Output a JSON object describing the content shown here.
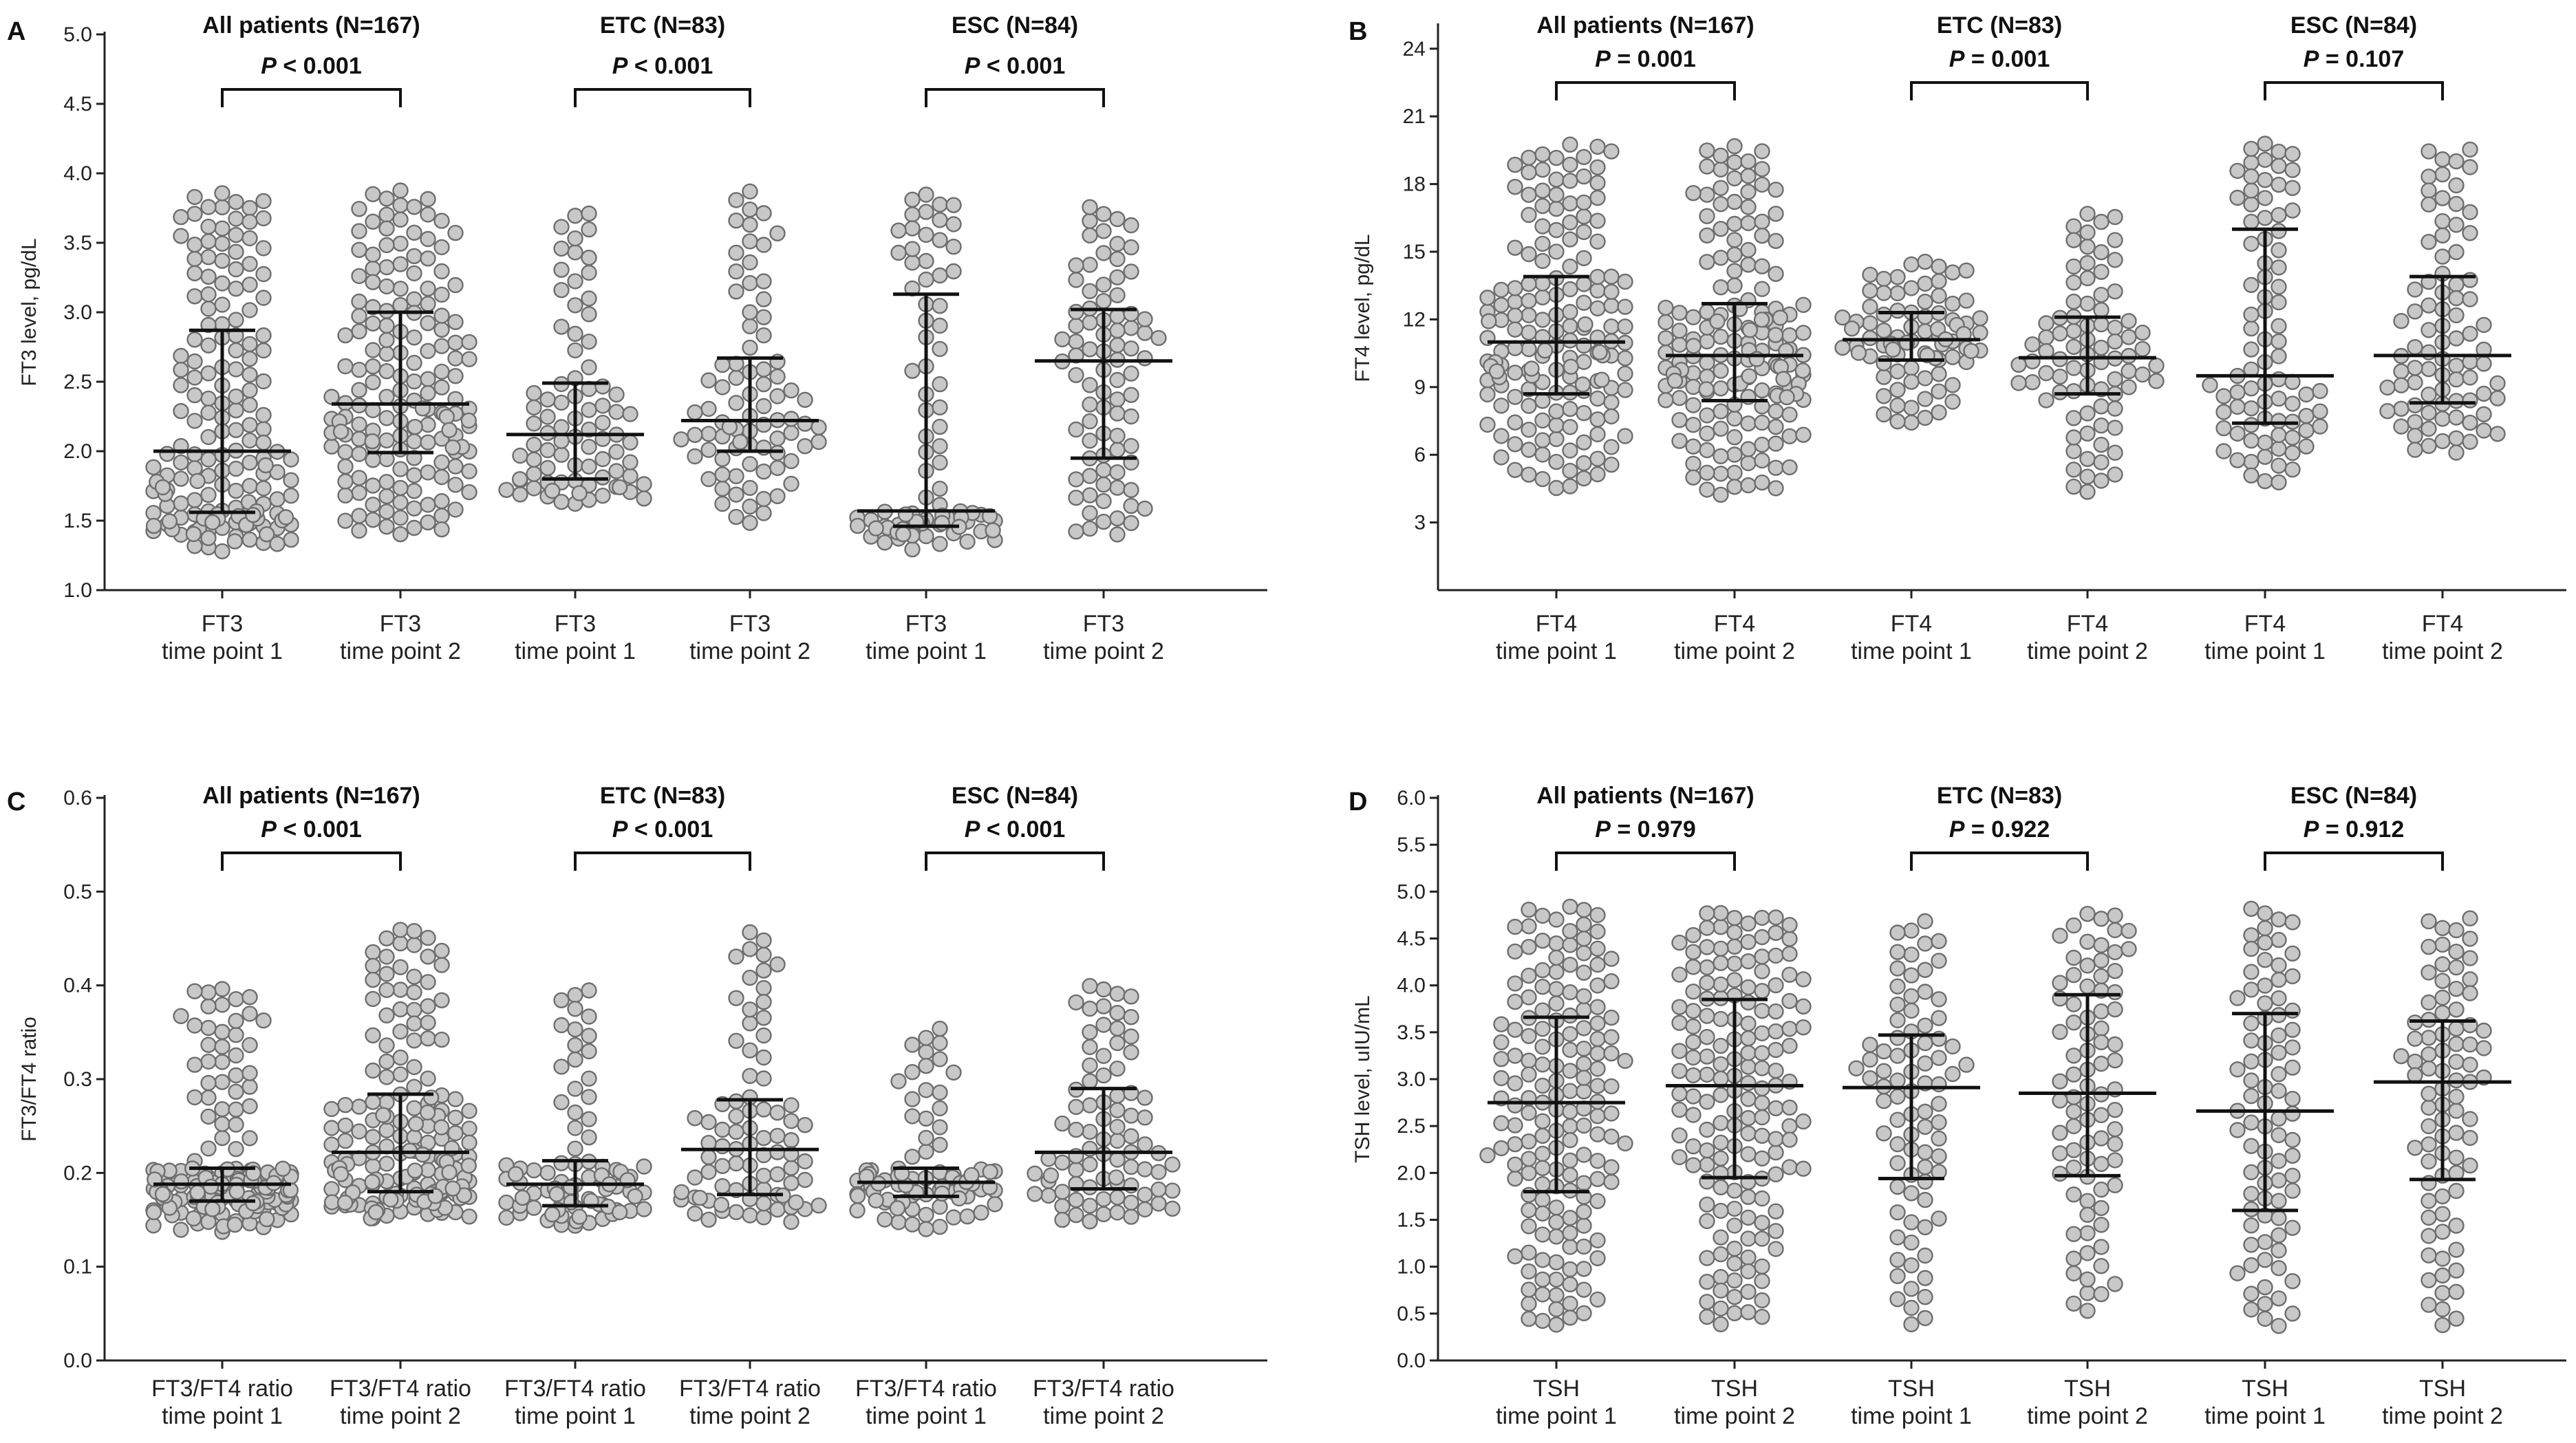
{
  "figure": {
    "panels": [
      "A",
      "B",
      "C",
      "D"
    ]
  },
  "chart_data": [
    {
      "panel": "A",
      "type": "scatter",
      "ylabel": "FT3 level, pg/dL",
      "ylim": [
        1.0,
        5.0
      ],
      "yticks": [
        "1.0",
        "1.5",
        "2.0",
        "2.5",
        "3.0",
        "3.5",
        "4.0",
        "4.5",
        "5.0"
      ],
      "categories": [
        [
          "FT3",
          "time point 1"
        ],
        [
          "FT3",
          "time point 2"
        ],
        [
          "FT3",
          "time point 1"
        ],
        [
          "FT3",
          "time point 2"
        ],
        [
          "FT3",
          "time point 1"
        ],
        [
          "FT3",
          "time point 2"
        ]
      ],
      "groups": [
        {
          "label": "All patients (N=167)",
          "p_prefix": "P",
          "p_rest": " < 0.001"
        },
        {
          "label": "ETC (N=83)",
          "p_prefix": "P",
          "p_rest": " < 0.001"
        },
        {
          "label": "ESC (N=84)",
          "p_prefix": "P",
          "p_rest": " < 0.001"
        }
      ],
      "series": [
        {
          "name": "All patients time point 1",
          "n": 167,
          "median": 2.0,
          "q1": 1.56,
          "q3": 2.87,
          "min": 1.27,
          "max": 3.86,
          "skew": 1.6
        },
        {
          "name": "All patients time point 2",
          "n": 167,
          "median": 2.34,
          "q1": 1.99,
          "q3": 3.0,
          "min": 1.4,
          "max": 3.88,
          "skew": 1.0
        },
        {
          "name": "ETC time point 1",
          "n": 83,
          "median": 2.12,
          "q1": 1.8,
          "q3": 2.49,
          "min": 1.62,
          "max": 3.75,
          "skew": 1.2
        },
        {
          "name": "ETC time point 2",
          "n": 83,
          "median": 2.22,
          "q1": 2.0,
          "q3": 2.67,
          "min": 1.47,
          "max": 3.88,
          "skew": 1.2
        },
        {
          "name": "ESC time point 1",
          "n": 84,
          "median": 1.57,
          "q1": 1.46,
          "q3": 3.13,
          "min": 1.27,
          "max": 3.86,
          "skew": 2.2
        },
        {
          "name": "ESC time point 2",
          "n": 84,
          "median": 2.65,
          "q1": 1.95,
          "q3": 3.02,
          "min": 1.4,
          "max": 3.77,
          "skew": 0.9
        }
      ]
    },
    {
      "panel": "B",
      "type": "scatter",
      "ylabel": "FT4 level, pg/dL",
      "ylim": [
        0,
        25
      ],
      "yticks": [
        "3",
        "6",
        "9",
        "12",
        "15",
        "18",
        "21",
        "24"
      ],
      "categories": [
        [
          "FT4",
          "time point 1"
        ],
        [
          "FT4",
          "time point 2"
        ],
        [
          "FT4",
          "time point 1"
        ],
        [
          "FT4",
          "time point 2"
        ],
        [
          "FT4",
          "time point 1"
        ],
        [
          "FT4",
          "time point 2"
        ]
      ],
      "groups": [
        {
          "label": "All patients (N=167)",
          "p_prefix": "P",
          "p_rest": " = 0.001"
        },
        {
          "label": "ETC (N=83)",
          "p_prefix": "P",
          "p_rest": " = 0.001"
        },
        {
          "label": "ESC (N=84)",
          "p_prefix": "P",
          "p_rest": " = 0.107"
        }
      ],
      "series": [
        {
          "name": "All patients time point 1",
          "n": 167,
          "median": 11.0,
          "q1": 8.7,
          "q3": 13.9,
          "min": 4.5,
          "max": 19.8,
          "skew": 1.1
        },
        {
          "name": "All patients time point 2",
          "n": 167,
          "median": 10.4,
          "q1": 8.4,
          "q3": 12.7,
          "min": 4.2,
          "max": 19.7,
          "skew": 1.1
        },
        {
          "name": "ETC time point 1",
          "n": 83,
          "median": 11.1,
          "q1": 10.2,
          "q3": 12.3,
          "min": 7.3,
          "max": 14.6,
          "skew": 1.0
        },
        {
          "name": "ETC time point 2",
          "n": 83,
          "median": 10.3,
          "q1": 8.7,
          "q3": 12.1,
          "min": 4.2,
          "max": 16.9,
          "skew": 1.0
        },
        {
          "name": "ESC time point 1",
          "n": 84,
          "median": 9.5,
          "q1": 7.4,
          "q3": 16.0,
          "min": 4.5,
          "max": 19.8,
          "skew": 1.4
        },
        {
          "name": "ESC time point 2",
          "n": 84,
          "median": 10.4,
          "q1": 8.3,
          "q3": 13.9,
          "min": 6.0,
          "max": 19.7,
          "skew": 1.2
        }
      ]
    },
    {
      "panel": "C",
      "type": "scatter",
      "ylabel": "FT3/FT4 ratio",
      "ylim": [
        0.0,
        0.6
      ],
      "yticks": [
        "0.0",
        "0.1",
        "0.2",
        "0.3",
        "0.4",
        "0.5",
        "0.6"
      ],
      "categories": [
        [
          "FT3/FT4 ratio",
          "time point 1"
        ],
        [
          "FT3/FT4 ratio",
          "time point 2"
        ],
        [
          "FT3/FT4 ratio",
          "time point 1"
        ],
        [
          "FT3/FT4 ratio",
          "time point 2"
        ],
        [
          "FT3/FT4 ratio",
          "time point 1"
        ],
        [
          "FT3/FT4 ratio",
          "time point 2"
        ]
      ],
      "groups": [
        {
          "label": "All patients (N=167)",
          "p_prefix": "P",
          "p_rest": " < 0.001"
        },
        {
          "label": "ETC (N=83)",
          "p_prefix": "P",
          "p_rest": " < 0.001"
        },
        {
          "label": "ESC (N=84)",
          "p_prefix": "P",
          "p_rest": " < 0.001"
        }
      ],
      "series": [
        {
          "name": "All patients time point 1",
          "n": 167,
          "median": 0.188,
          "q1": 0.17,
          "q3": 0.205,
          "min": 0.135,
          "max": 0.4,
          "skew": 1.6
        },
        {
          "name": "All patients time point 2",
          "n": 167,
          "median": 0.222,
          "q1": 0.18,
          "q3": 0.284,
          "min": 0.15,
          "max": 0.46,
          "skew": 1.4
        },
        {
          "name": "ETC time point 1",
          "n": 83,
          "median": 0.188,
          "q1": 0.165,
          "q3": 0.213,
          "min": 0.14,
          "max": 0.4,
          "skew": 1.6
        },
        {
          "name": "ETC time point 2",
          "n": 83,
          "median": 0.225,
          "q1": 0.177,
          "q3": 0.278,
          "min": 0.145,
          "max": 0.46,
          "skew": 1.4
        },
        {
          "name": "ESC time point 1",
          "n": 84,
          "median": 0.19,
          "q1": 0.175,
          "q3": 0.205,
          "min": 0.135,
          "max": 0.355,
          "skew": 1.6
        },
        {
          "name": "ESC time point 2",
          "n": 84,
          "median": 0.222,
          "q1": 0.183,
          "q3": 0.29,
          "min": 0.145,
          "max": 0.403,
          "skew": 1.3
        }
      ]
    },
    {
      "panel": "D",
      "type": "scatter",
      "ylabel": "TSH level, uIU/mL",
      "ylim": [
        0.0,
        6.0
      ],
      "yticks": [
        "0.0",
        "0.5",
        "1.0",
        "1.5",
        "2.0",
        "2.5",
        "3.0",
        "3.5",
        "4.0",
        "4.5",
        "5.0",
        "5.5",
        "6.0"
      ],
      "categories": [
        [
          "TSH",
          "time point 1"
        ],
        [
          "TSH",
          "time point 2"
        ],
        [
          "TSH",
          "time point 1"
        ],
        [
          "TSH",
          "time point 2"
        ],
        [
          "TSH",
          "time point 1"
        ],
        [
          "TSH",
          "time point 2"
        ]
      ],
      "groups": [
        {
          "label": "All patients (N=167)",
          "p_prefix": "P",
          "p_rest": " = 0.979"
        },
        {
          "label": "ETC (N=83)",
          "p_prefix": "P",
          "p_rest": " = 0.922"
        },
        {
          "label": "ESC (N=84)",
          "p_prefix": "P",
          "p_rest": " = 0.912"
        }
      ],
      "series": [
        {
          "name": "All patients time point 1",
          "n": 167,
          "median": 2.75,
          "q1": 1.8,
          "q3": 3.66,
          "min": 0.35,
          "max": 4.85,
          "skew": 1.0
        },
        {
          "name": "All patients time point 2",
          "n": 167,
          "median": 2.93,
          "q1": 1.95,
          "q3": 3.85,
          "min": 0.38,
          "max": 4.8,
          "skew": 1.0
        },
        {
          "name": "ETC time point 1",
          "n": 83,
          "median": 2.91,
          "q1": 1.94,
          "q3": 3.47,
          "min": 0.35,
          "max": 4.7,
          "skew": 1.0
        },
        {
          "name": "ETC time point 2",
          "n": 83,
          "median": 2.85,
          "q1": 1.97,
          "q3": 3.9,
          "min": 0.5,
          "max": 4.8,
          "skew": 1.0
        },
        {
          "name": "ESC time point 1",
          "n": 84,
          "median": 2.66,
          "q1": 1.6,
          "q3": 3.7,
          "min": 0.35,
          "max": 4.85,
          "skew": 1.0
        },
        {
          "name": "ESC time point 2",
          "n": 84,
          "median": 2.97,
          "q1": 1.93,
          "q3": 3.62,
          "min": 0.35,
          "max": 4.75,
          "skew": 1.0
        }
      ]
    }
  ]
}
